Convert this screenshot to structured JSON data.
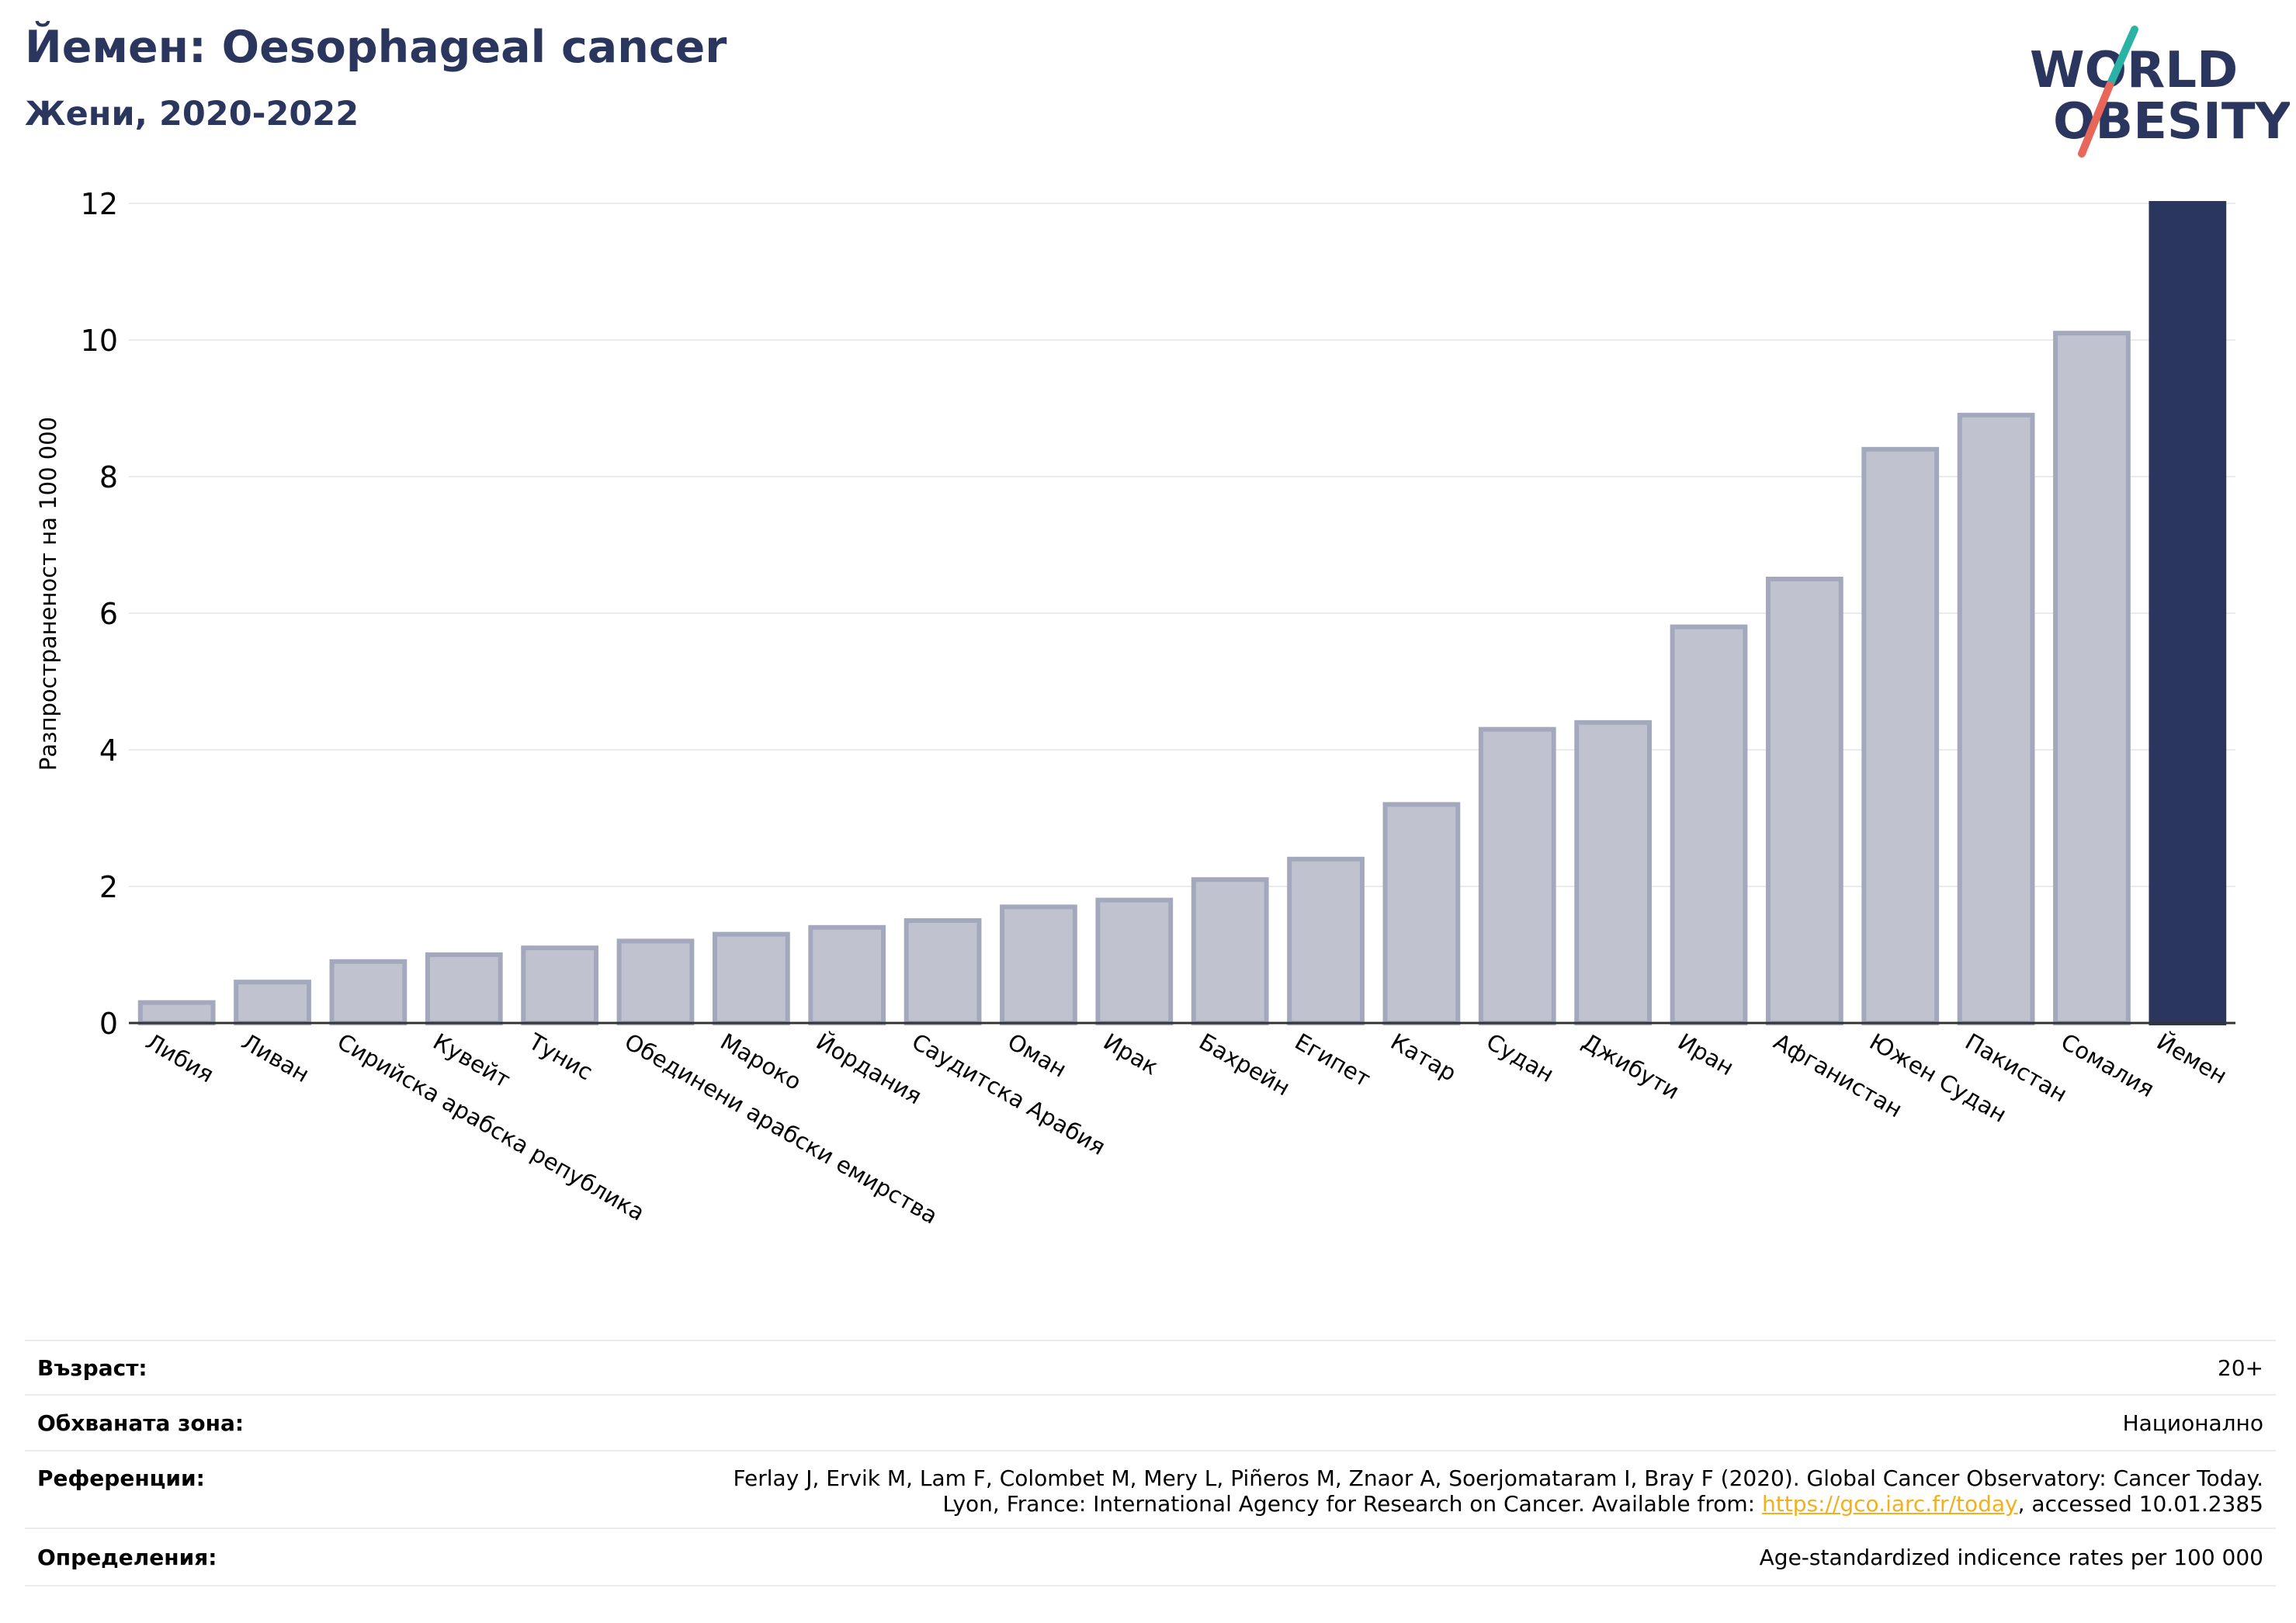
{
  "header": {
    "title": "Йемен: Oesophageal cancer",
    "subtitle": "Жени, 2020-2022"
  },
  "logo": {
    "line1": "WORLD",
    "line2": "OBESITY"
  },
  "chart_data": {
    "type": "bar",
    "title": "Йемен: Oesophageal cancer",
    "subtitle": "Жени, 2020-2022",
    "xlabel": "",
    "ylabel": "Разпространеност  на 100 000",
    "ylim": [
      0,
      12
    ],
    "yticks": [
      0,
      2,
      4,
      6,
      8,
      10,
      12
    ],
    "grid": true,
    "categories": [
      "Либия",
      "Ливан",
      "Сирийска арабска република",
      "Кувейт",
      "Тунис",
      "Обединени арабски емирства",
      "Мароко",
      "Йордания",
      "Саудитска Арабия",
      "Оман",
      "Ирак",
      "Бахрейн",
      "Египет",
      "Катар",
      "Судан",
      "Джибути",
      "Иран",
      "Афганистан",
      "Южен Судан",
      "Пакистан",
      "Сомалия",
      "Йемен"
    ],
    "values": [
      0.3,
      0.6,
      0.9,
      1.0,
      1.1,
      1.2,
      1.3,
      1.4,
      1.5,
      1.7,
      1.8,
      2.1,
      2.4,
      3.2,
      4.3,
      4.4,
      5.8,
      6.5,
      8.4,
      8.9,
      10.1,
      12.0
    ],
    "highlight": "Йемен",
    "colors": {
      "bar_fill": "#c0c3cf",
      "bar_edge": "#a3a8bd",
      "highlight": "#2b365f",
      "grid": "#e9ebf0",
      "axis": "#333333"
    }
  },
  "info": {
    "age_label": "Възраст:",
    "age_value": "20+",
    "area_label": "Обхваната зона:",
    "area_value": "Национално",
    "ref_label": "Референции:",
    "ref_line1": "Ferlay J, Ervik M, Lam F, Colombet M, Mery L, Piñeros M, Znaor A, Soerjomataram I, Bray F (2020). Global Cancer Observatory: Cancer Today.",
    "ref_line2_pre": "Lyon, France: International Agency for Research on Cancer. Available from: ",
    "ref_link": "https://gco.iarc.fr/today",
    "ref_line2_post": ", accessed 10.01.2385",
    "def_label": "Определения:",
    "def_value": "Age-standardized indicence rates per 100 000"
  }
}
